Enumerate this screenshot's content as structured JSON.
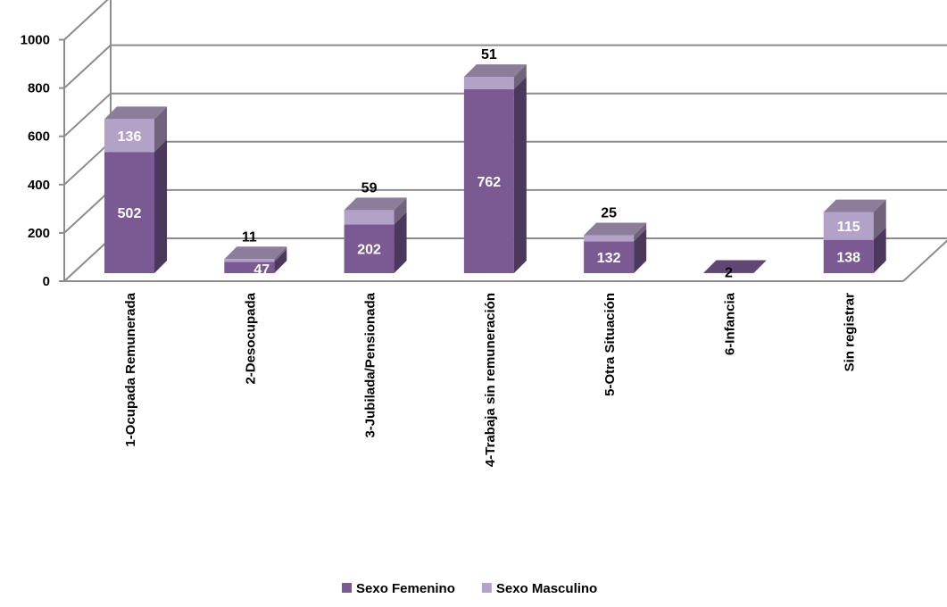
{
  "chart_data": {
    "type": "bar",
    "stacked": true,
    "three_d": true,
    "categories": [
      "1-Ocupada Remunerada",
      "2-Desocupada",
      "3-Jubilada/Pensionada",
      "4-Trabaja sin remuneración",
      "5-Otra Situación",
      "6-Infancia",
      "Sin registrar"
    ],
    "series": [
      {
        "name": "Sexo  Femenino",
        "values": [
          502,
          47,
          202,
          762,
          132,
          2,
          138
        ],
        "color": "#7b5a94"
      },
      {
        "name": "Sexo  Masculino",
        "values": [
          136,
          11,
          59,
          51,
          25,
          null,
          115
        ],
        "color": "#b3a2c7"
      }
    ],
    "yticks": [
      "0",
      "200",
      "400",
      "600",
      "800",
      "1000"
    ],
    "ylim": [
      0,
      1000
    ],
    "grid": true,
    "legend_position": "bottom",
    "title": "",
    "xlabel": "",
    "ylabel": ""
  }
}
